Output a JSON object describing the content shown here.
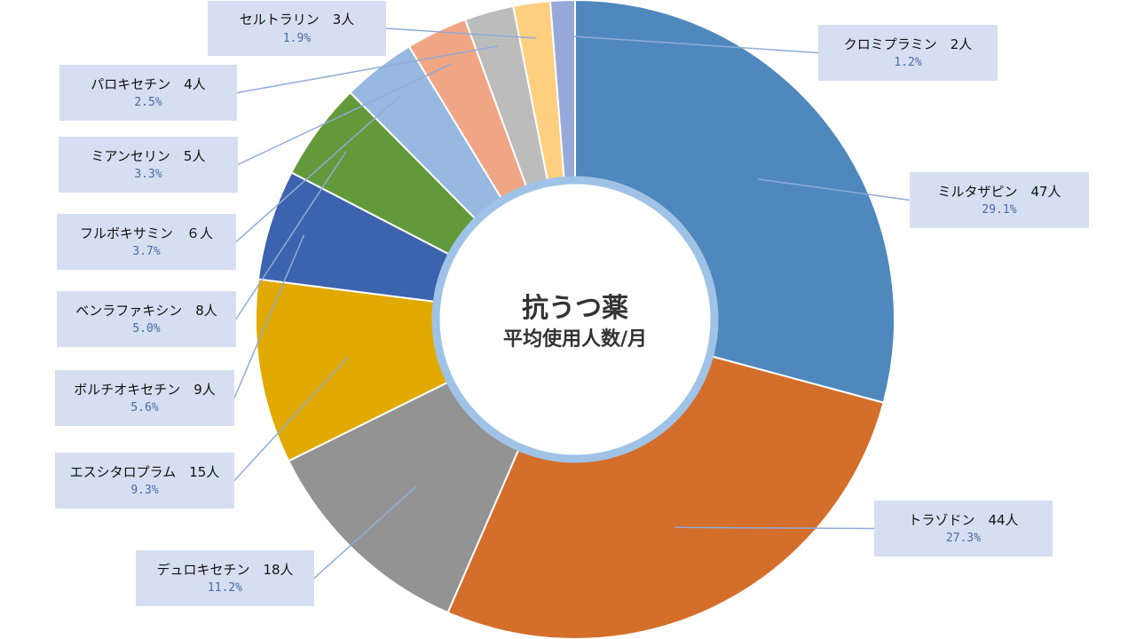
{
  "chart_data": {
    "type": "pie",
    "title": "抗うつ薬",
    "subtitle": "平均使用人数/月",
    "series": [
      {
        "name": "ミルタザピン",
        "count_label": "47人",
        "value": 47,
        "percent": "29.1%",
        "color": "#4f88bd"
      },
      {
        "name": "トラゾドン",
        "count_label": "44人",
        "value": 44,
        "percent": "27.3%",
        "color": "#d36f2b"
      },
      {
        "name": "デュロキセチン",
        "count_label": "18人",
        "value": 18,
        "percent": "11.2%",
        "color": "#939393"
      },
      {
        "name": "エスシタロプラム",
        "count_label": "15人",
        "value": 15,
        "percent": "9.3%",
        "color": "#e2aa00"
      },
      {
        "name": "ボルチオキセチン",
        "count_label": "9人",
        "value": 9,
        "percent": "5.6%",
        "color": "#3c63ae"
      },
      {
        "name": "ベンラファキシン",
        "count_label": "8人",
        "value": 8,
        "percent": "5.0%",
        "color": "#629a3b"
      },
      {
        "name": "フルボキサミン",
        "count_label": "６人",
        "value": 6,
        "percent": "3.7%",
        "color": "#97b8e0"
      },
      {
        "name": "ミアンセリン",
        "count_label": "5人",
        "value": 5,
        "percent": "3.3%",
        "color": "#f0a685"
      },
      {
        "name": "パロキセチン",
        "count_label": "4人",
        "value": 4,
        "percent": "2.5%",
        "color": "#bcbcbc"
      },
      {
        "name": "セルトラリン",
        "count_label": "3人",
        "value": 3,
        "percent": "1.9%",
        "color": "#fecf7e"
      },
      {
        "name": "クロミプラミン",
        "count_label": "2人",
        "value": 2,
        "percent": "1.2%",
        "color": "#96a9d9"
      }
    ]
  }
}
